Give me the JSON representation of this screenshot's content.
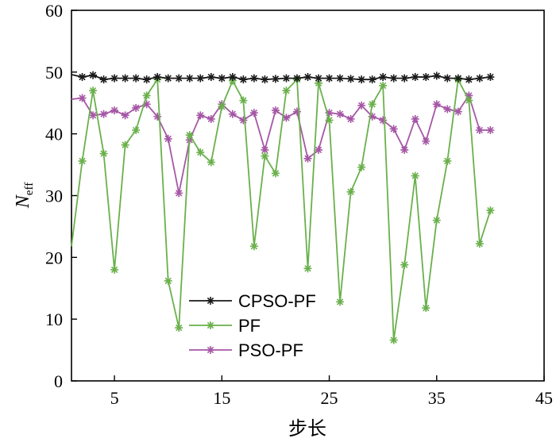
{
  "chart_data": {
    "type": "line",
    "title": "",
    "xlabel": "步长",
    "ylabel_main": "N",
    "ylabel_sub": "eff",
    "xlim": [
      1,
      45
    ],
    "ylim": [
      0,
      60
    ],
    "xticks": [
      5,
      15,
      25,
      35,
      45
    ],
    "yticks": [
      0,
      10,
      20,
      30,
      40,
      50,
      60
    ],
    "legend_position": "bottom-left",
    "x": [
      1,
      2,
      3,
      4,
      5,
      6,
      7,
      8,
      9,
      10,
      11,
      12,
      13,
      14,
      15,
      16,
      17,
      18,
      19,
      20,
      21,
      22,
      23,
      24,
      25,
      26,
      27,
      28,
      29,
      30,
      31,
      32,
      33,
      34,
      35,
      36,
      37,
      38,
      39,
      40
    ],
    "series": [
      {
        "name": "CPSO-PF",
        "color": "#1a1a1a",
        "marker": "star",
        "values": [
          49.6,
          49.2,
          49.5,
          48.8,
          49.0,
          49.0,
          49.0,
          48.8,
          49.2,
          49.0,
          49.0,
          49.0,
          49.0,
          49.2,
          49.0,
          49.2,
          48.8,
          49.0,
          48.8,
          48.9,
          49.0,
          49.0,
          49.2,
          49.0,
          49.0,
          49.0,
          48.9,
          48.8,
          48.8,
          49.2,
          49.0,
          49.0,
          49.2,
          49.2,
          49.4,
          49.0,
          49.0,
          48.8,
          49.0,
          49.2
        ]
      },
      {
        "name": "PF",
        "color": "#6ab04c",
        "marker": "star",
        "values": [
          21.8,
          35.6,
          47.0,
          36.8,
          18.0,
          38.2,
          40.6,
          46.2,
          48.8,
          16.2,
          8.6,
          39.8,
          37.0,
          35.4,
          44.4,
          48.6,
          45.4,
          21.8,
          36.4,
          33.6,
          47.0,
          48.8,
          18.2,
          48.2,
          42.2,
          12.8,
          30.6,
          34.6,
          44.8,
          47.8,
          6.6,
          18.8,
          33.2,
          11.8,
          26.0,
          35.6,
          48.8,
          45.4,
          22.2,
          27.6
        ]
      },
      {
        "name": "PSO-PF",
        "color": "#a557a5",
        "marker": "star",
        "values": [
          45.6,
          45.8,
          43.0,
          43.2,
          43.8,
          43.0,
          44.2,
          44.8,
          42.8,
          39.2,
          30.4,
          39.0,
          43.0,
          42.4,
          44.8,
          43.2,
          42.2,
          43.4,
          37.4,
          43.8,
          42.6,
          43.6,
          36.0,
          37.4,
          43.4,
          43.2,
          42.4,
          44.6,
          42.8,
          42.2,
          40.8,
          37.4,
          42.4,
          38.8,
          44.8,
          44.0,
          43.6,
          46.2,
          40.6,
          40.6
        ]
      }
    ]
  }
}
